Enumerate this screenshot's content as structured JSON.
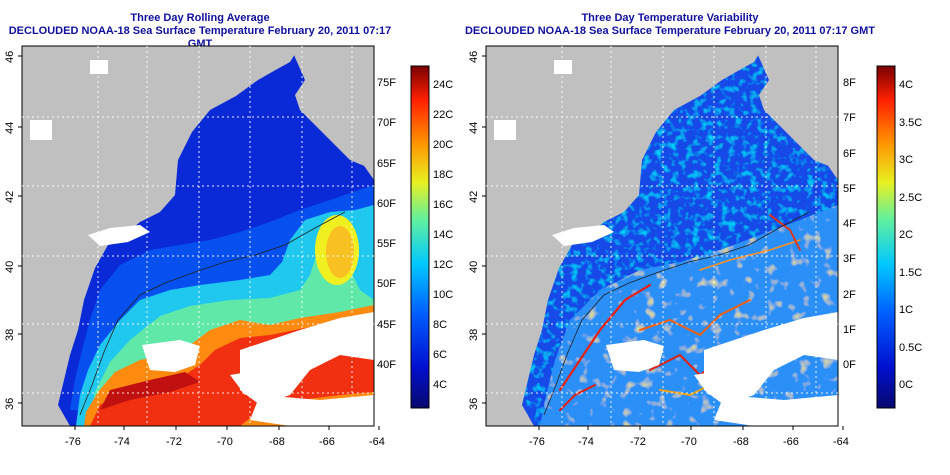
{
  "left_panel": {
    "title_line1": "Three Day Rolling Average",
    "title_line2": "DECLOUDED NOAA-18 Sea Surface Temperature February 20, 2011 07:17 GMT",
    "colorbar_f": [
      "75F",
      "70F",
      "65F",
      "60F",
      "55F",
      "50F",
      "45F",
      "40F"
    ],
    "colorbar_c": [
      "24C",
      "22C",
      "20C",
      "18C",
      "16C",
      "14C",
      "12C",
      "10C",
      "8C",
      "6C",
      "4C"
    ]
  },
  "right_panel": {
    "title_line1": "Three Day Temperature Variability",
    "title_line2": "DECLOUDED NOAA-18 Sea Surface Temperature February 20, 2011 07:17 GMT",
    "colorbar_f": [
      "8F",
      "7F",
      "6F",
      "5F",
      "4F",
      "3F",
      "2F",
      "1F",
      "0F"
    ],
    "colorbar_c": [
      "4C",
      "3.5C",
      "3C",
      "2.5C",
      "2C",
      "1.5C",
      "1C",
      "0.5C",
      "0C"
    ]
  },
  "x_ticks": [
    "-76",
    "-74",
    "-72",
    "-70",
    "-68",
    "-66",
    "-64"
  ],
  "y_ticks": [
    "46",
    "44",
    "42",
    "40",
    "38",
    "36"
  ],
  "colors": {
    "land": "#c0c0c0",
    "cloud": "#ffffff",
    "title": "#1010a0"
  }
}
